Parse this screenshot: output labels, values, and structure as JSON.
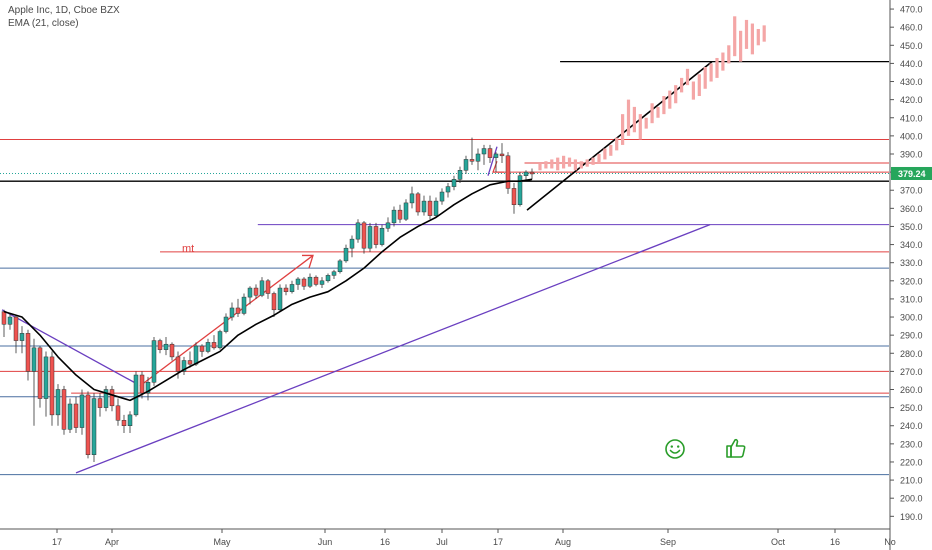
{
  "legend": {
    "line1": "Apple Inc, 1D, Cboe BZX",
    "line2": "EMA (21, close)"
  },
  "colors": {
    "up": "#26a69a",
    "down": "#ef5350",
    "projection": "#f4a6a6",
    "ema": "#000000",
    "purple": "#6a3fc0",
    "red_line": "#e04040",
    "blue_line": "#4a6fa0",
    "price_tag_bg": "#26a65b",
    "smiley": "#2a9d2a"
  },
  "chart_data": {
    "type": "candlestick",
    "ylim": [
      183,
      475
    ],
    "y_ticks": [
      190,
      200,
      210,
      220,
      230,
      240,
      250,
      260,
      270,
      280,
      290,
      300,
      310,
      320,
      330,
      340,
      350,
      360,
      370,
      380,
      390,
      400,
      410,
      420,
      430,
      440,
      450,
      460,
      470
    ],
    "x_tick_labels": [
      "17",
      "Apr",
      "May",
      "Jun",
      "16",
      "Jul",
      "17",
      "Aug",
      "Sep",
      "Oct",
      "16",
      "No"
    ],
    "current_price_label": "379.24",
    "current_price": 379.24,
    "candles": [
      [
        303,
        304,
        289,
        296
      ],
      [
        296,
        302,
        293,
        300
      ],
      [
        300,
        301,
        280,
        287
      ],
      [
        287,
        295,
        280,
        291
      ],
      [
        291,
        293,
        265,
        270
      ],
      [
        270,
        288,
        240,
        283
      ],
      [
        283,
        284,
        250,
        255
      ],
      [
        255,
        281,
        245,
        278
      ],
      [
        278,
        281,
        240,
        246
      ],
      [
        246,
        263,
        240,
        260
      ],
      [
        260,
        262,
        235,
        238
      ],
      [
        238,
        255,
        236,
        252
      ],
      [
        252,
        256,
        236,
        239
      ],
      [
        239,
        260,
        235,
        257
      ],
      [
        257,
        259,
        222,
        224
      ],
      [
        224,
        258,
        220,
        255
      ],
      [
        255,
        258,
        245,
        250
      ],
      [
        250,
        262,
        248,
        260
      ],
      [
        260,
        262,
        248,
        251
      ],
      [
        251,
        255,
        240,
        243
      ],
      [
        243,
        246,
        236,
        240
      ],
      [
        240,
        248,
        236,
        246
      ],
      [
        246,
        270,
        245,
        268
      ],
      [
        268,
        270,
        255,
        258
      ],
      [
        258,
        267,
        254,
        264
      ],
      [
        264,
        289,
        262,
        287
      ],
      [
        287,
        288,
        280,
        282
      ],
      [
        282,
        289,
        279,
        285
      ],
      [
        285,
        286,
        276,
        278
      ],
      [
        278,
        281,
        266,
        270
      ],
      [
        270,
        278,
        268,
        276
      ],
      [
        276,
        281,
        272,
        274
      ],
      [
        274,
        286,
        273,
        284
      ],
      [
        284,
        285,
        278,
        281
      ],
      [
        281,
        288,
        280,
        286
      ],
      [
        286,
        290,
        282,
        283
      ],
      [
        283,
        293,
        282,
        292
      ],
      [
        292,
        302,
        291,
        300
      ],
      [
        300,
        308,
        298,
        305
      ],
      [
        305,
        310,
        300,
        302
      ],
      [
        302,
        313,
        301,
        311
      ],
      [
        311,
        317,
        307,
        316
      ],
      [
        316,
        318,
        310,
        312
      ],
      [
        312,
        322,
        311,
        320
      ],
      [
        320,
        321,
        310,
        313
      ],
      [
        313,
        314,
        300,
        304
      ],
      [
        304,
        318,
        303,
        316
      ],
      [
        316,
        318,
        312,
        314
      ],
      [
        314,
        320,
        313,
        318
      ],
      [
        318,
        322,
        315,
        321
      ],
      [
        321,
        322,
        315,
        317
      ],
      [
        317,
        324,
        316,
        322
      ],
      [
        322,
        323,
        317,
        318
      ],
      [
        318,
        322,
        316,
        320
      ],
      [
        320,
        324,
        319,
        323
      ],
      [
        323,
        326,
        321,
        325
      ],
      [
        325,
        332,
        324,
        331
      ],
      [
        331,
        340,
        330,
        338
      ],
      [
        338,
        345,
        333,
        343
      ],
      [
        343,
        354,
        341,
        352
      ],
      [
        352,
        353,
        335,
        338
      ],
      [
        338,
        352,
        336,
        350
      ],
      [
        350,
        352,
        338,
        340
      ],
      [
        340,
        351,
        339,
        349
      ],
      [
        349,
        355,
        347,
        352
      ],
      [
        352,
        361,
        350,
        359
      ],
      [
        359,
        362,
        352,
        354
      ],
      [
        354,
        365,
        353,
        363
      ],
      [
        363,
        372,
        360,
        368
      ],
      [
        368,
        369,
        356,
        358
      ],
      [
        358,
        367,
        356,
        364
      ],
      [
        364,
        367,
        354,
        356
      ],
      [
        356,
        366,
        355,
        364
      ],
      [
        364,
        371,
        362,
        369
      ],
      [
        369,
        374,
        366,
        372
      ],
      [
        372,
        378,
        370,
        376
      ],
      [
        376,
        383,
        374,
        381
      ],
      [
        381,
        389,
        379,
        387
      ],
      [
        387,
        399,
        384,
        386
      ],
      [
        386,
        393,
        381,
        390
      ],
      [
        390,
        395,
        384,
        393
      ],
      [
        393,
        395,
        385,
        388
      ],
      [
        388,
        391,
        380,
        390
      ],
      [
        390,
        396,
        385,
        389
      ],
      [
        389,
        391,
        368,
        371
      ],
      [
        371,
        374,
        357,
        362
      ],
      [
        362,
        380,
        361,
        378
      ],
      [
        378,
        381,
        375,
        380
      ],
      [
        380,
        382,
        376,
        379
      ]
    ],
    "projection_bars": [
      [
        381,
        385
      ],
      [
        382,
        386
      ],
      [
        382,
        387
      ],
      [
        381,
        388
      ],
      [
        382,
        389
      ],
      [
        383,
        388
      ],
      [
        381,
        387
      ],
      [
        382,
        386
      ],
      [
        383,
        387
      ],
      [
        384,
        388
      ],
      [
        385,
        390
      ],
      [
        387,
        393
      ],
      [
        389,
        395
      ],
      [
        392,
        399
      ],
      [
        395,
        412
      ],
      [
        400,
        420
      ],
      [
        402,
        416
      ],
      [
        398,
        412
      ],
      [
        404,
        410
      ],
      [
        407,
        418
      ],
      [
        410,
        416
      ],
      [
        412,
        422
      ],
      [
        415,
        425
      ],
      [
        418,
        428
      ],
      [
        424,
        432
      ],
      [
        428,
        437
      ],
      [
        420,
        430
      ],
      [
        422,
        434
      ],
      [
        426,
        438
      ],
      [
        430,
        440
      ],
      [
        432,
        443
      ],
      [
        436,
        446
      ],
      [
        440,
        450
      ],
      [
        444,
        466
      ],
      [
        441,
        458
      ],
      [
        448,
        464
      ],
      [
        445,
        462
      ],
      [
        450,
        459
      ],
      [
        452,
        461
      ]
    ],
    "ema": [
      [
        0,
        303
      ],
      [
        3,
        300
      ],
      [
        6,
        290
      ],
      [
        9,
        278
      ],
      [
        12,
        268
      ],
      [
        15,
        260
      ],
      [
        18,
        257
      ],
      [
        21,
        254
      ],
      [
        24,
        259
      ],
      [
        27,
        265
      ],
      [
        30,
        271
      ],
      [
        33,
        276
      ],
      [
        36,
        281
      ],
      [
        39,
        290
      ],
      [
        42,
        296
      ],
      [
        45,
        301
      ],
      [
        48,
        307
      ],
      [
        51,
        311
      ],
      [
        54,
        314
      ],
      [
        57,
        320
      ],
      [
        60,
        327
      ],
      [
        63,
        336
      ],
      [
        66,
        344
      ],
      [
        69,
        350
      ],
      [
        72,
        355
      ],
      [
        75,
        362
      ],
      [
        78,
        368
      ],
      [
        81,
        373
      ],
      [
        84,
        375
      ],
      [
        86,
        375
      ],
      [
        88,
        376
      ]
    ],
    "horizontal_lines": [
      {
        "price": 398,
        "color": "red",
        "x0": 0,
        "x1": 1
      },
      {
        "price": 385,
        "color": "red",
        "x0": 0.59,
        "x1": 1
      },
      {
        "price": 380,
        "color": "red",
        "x0": 0.56,
        "x1": 1
      },
      {
        "price": 375,
        "color": "black",
        "x0": 0,
        "x1": 1
      },
      {
        "price": 351,
        "color": "purple",
        "x0": 0.29,
        "x1": 1
      },
      {
        "price": 336,
        "color": "red",
        "x0": 0.18,
        "x1": 1
      },
      {
        "price": 327,
        "color": "blue",
        "x0": 0,
        "x1": 1
      },
      {
        "price": 284,
        "color": "blue",
        "x0": 0,
        "x1": 1
      },
      {
        "price": 270,
        "color": "red",
        "x0": 0,
        "x1": 1
      },
      {
        "price": 258,
        "color": "red",
        "x0": 0.08,
        "x1": 1
      },
      {
        "price": 256,
        "color": "blue",
        "x0": 0,
        "x1": 1
      },
      {
        "price": 213,
        "color": "blue",
        "x0": 0,
        "x1": 1
      },
      {
        "price": 441,
        "color": "black",
        "x0": 0.63,
        "x1": 1
      }
    ],
    "annotations": {
      "mt_label": "mt"
    }
  }
}
